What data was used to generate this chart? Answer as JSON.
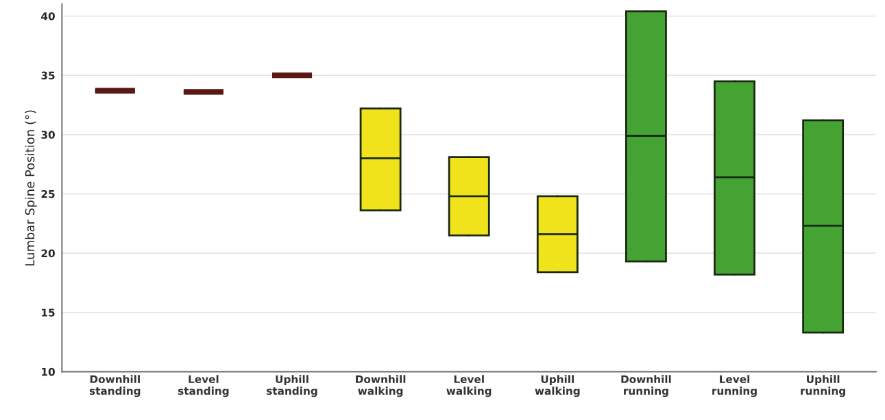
{
  "chart_data": {
    "type": "box",
    "ylabel": "Lumbar Spine Position (°)",
    "categories": [
      "Downhill\nstanding",
      "Level\nstanding",
      "Uphill\nstanding",
      "Downhill\nwalking",
      "Level\nwalking",
      "Uphill\nwalking",
      "Downhill\nrunning",
      "Level\nrunning",
      "Uphill\nrunning"
    ],
    "boxes": [
      {
        "low": 33.7,
        "q1": 33.7,
        "median": 33.7,
        "q3": 33.7,
        "high": 33.7
      },
      {
        "low": 33.6,
        "q1": 33.6,
        "median": 33.6,
        "q3": 33.6,
        "high": 33.6
      },
      {
        "low": 35.0,
        "q1": 35.0,
        "median": 35.0,
        "q3": 35.0,
        "high": 35.0
      },
      {
        "low": 23.6,
        "q1": 23.6,
        "median": 28.0,
        "q3": 32.2,
        "high": 32.2
      },
      {
        "low": 21.5,
        "q1": 21.5,
        "median": 24.8,
        "q3": 28.1,
        "high": 28.1
      },
      {
        "low": 18.4,
        "q1": 18.4,
        "median": 21.6,
        "q3": 24.8,
        "high": 24.8
      },
      {
        "low": 19.3,
        "q1": 19.3,
        "median": 29.9,
        "q3": 40.4,
        "high": 40.4
      },
      {
        "low": 18.2,
        "q1": 18.2,
        "median": 26.4,
        "q3": 34.5,
        "high": 34.5
      },
      {
        "low": 13.3,
        "q1": 13.3,
        "median": 22.3,
        "q3": 31.2,
        "high": 31.2
      }
    ],
    "colors": [
      "#5a1812",
      "#5a1812",
      "#5a1812",
      "#f0e31c",
      "#f0e31c",
      "#f0e31c",
      "#45a334",
      "#45a334",
      "#45a334"
    ],
    "ylim": [
      10,
      41
    ],
    "yticks": [
      10,
      15,
      20,
      25,
      30,
      35,
      40
    ],
    "grid": "y"
  }
}
